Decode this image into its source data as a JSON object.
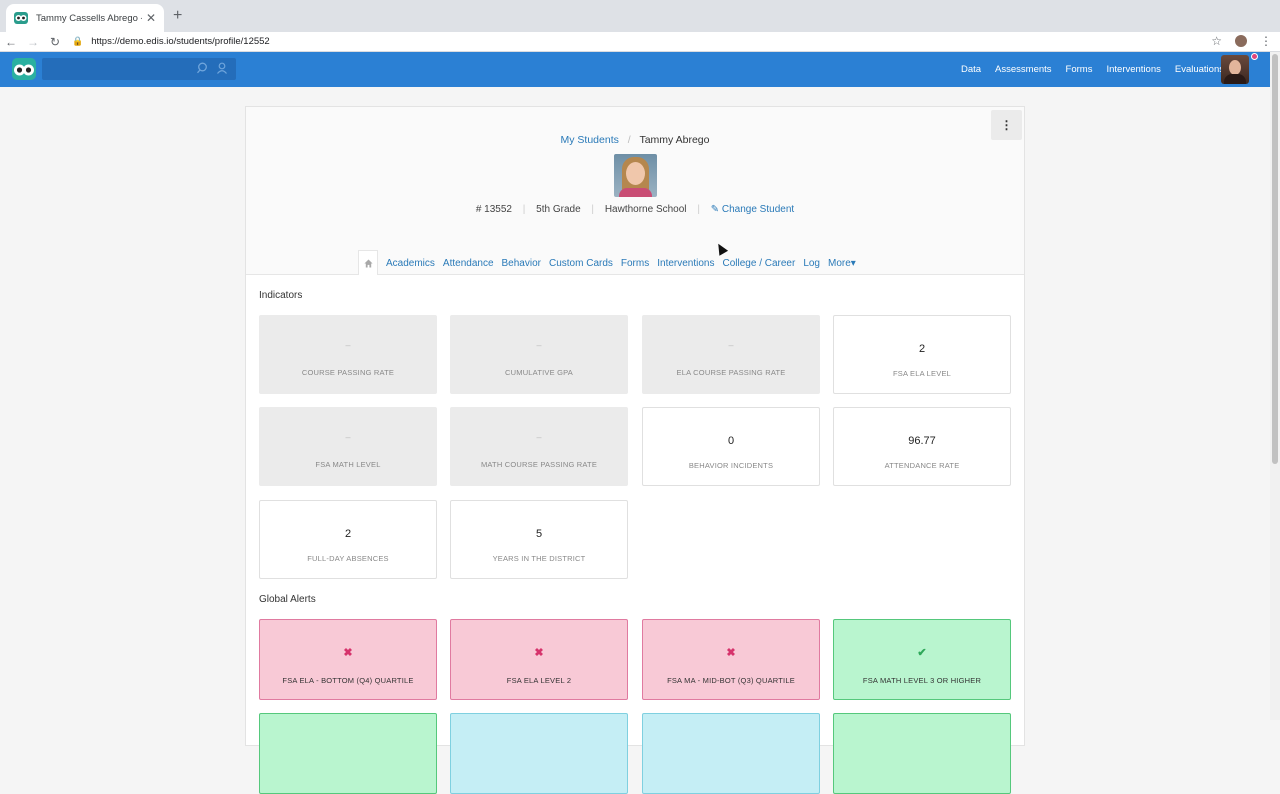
{
  "browser": {
    "tab_title": "Tammy Cassells Abrego - Stud",
    "url": "https://demo.edis.io/students/profile/12552"
  },
  "appbar": {
    "nav": [
      "Data",
      "Assessments",
      "Forms",
      "Interventions",
      "Evaluations"
    ]
  },
  "student": {
    "breadcrumb_root": "My Students",
    "name": "Tammy Abrego",
    "id": "# 13552",
    "grade": "5th Grade",
    "school": "Hawthorne School",
    "change_label": "Change Student"
  },
  "tabs": [
    "Academics",
    "Attendance",
    "Behavior",
    "Custom Cards",
    "Forms",
    "Interventions",
    "College / Career",
    "Log",
    "More▾"
  ],
  "indicators": {
    "title": "Indicators",
    "tiles": [
      {
        "value": "–",
        "label": "COURSE PASSING RATE",
        "empty": true
      },
      {
        "value": "–",
        "label": "CUMULATIVE GPA",
        "empty": true
      },
      {
        "value": "–",
        "label": "ELA COURSE PASSING RATE",
        "empty": true
      },
      {
        "value": "2",
        "label": "FSA ELA LEVEL",
        "empty": false
      },
      {
        "value": "–",
        "label": "FSA MATH LEVEL",
        "empty": true
      },
      {
        "value": "–",
        "label": "MATH COURSE PASSING RATE",
        "empty": true
      },
      {
        "value": "0",
        "label": "BEHAVIOR INCIDENTS",
        "empty": false
      },
      {
        "value": "96.77",
        "label": "ATTENDANCE RATE",
        "empty": false
      },
      {
        "value": "2",
        "label": "FULL-DAY ABSENCES",
        "empty": false
      },
      {
        "value": "5",
        "label": "YEARS IN THE DISTRICT",
        "empty": false
      }
    ]
  },
  "alerts": {
    "title": "Global Alerts",
    "items": [
      {
        "mark": "✖",
        "label": "FSA ELA - BOTTOM (Q4) QUARTILE",
        "status": "bad"
      },
      {
        "mark": "✖",
        "label": "FSA ELA LEVEL 2",
        "status": "bad"
      },
      {
        "mark": "✖",
        "label": "FSA MA - MID-BOT (Q3) QUARTILE",
        "status": "bad"
      },
      {
        "mark": "✔",
        "label": "FSA MATH LEVEL 3 OR HIGHER",
        "status": "good"
      }
    ]
  },
  "colors": {
    "appbar": "#2b80d4",
    "link": "#2a7ab8",
    "alert_bad": "#f8c9d6",
    "alert_good": "#b9f5cf"
  }
}
